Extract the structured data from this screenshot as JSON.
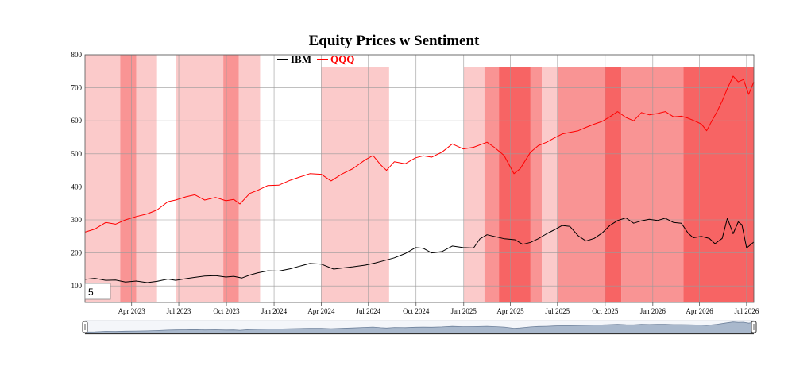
{
  "chart_data": {
    "type": "line",
    "title": "Equity Prices w Sentiment",
    "xlabel": "",
    "ylabel": "",
    "xlim": [
      "2023-01-01",
      "2026-07-15"
    ],
    "ylim": [
      50,
      800
    ],
    "grid": true,
    "legend_position": "top-center",
    "y_ticks": [
      100,
      200,
      300,
      400,
      500,
      600,
      700,
      800
    ],
    "x_ticks": [
      {
        "date": "2023-04-01",
        "label": "Apr 2023"
      },
      {
        "date": "2023-07-01",
        "label": "Jul 2023"
      },
      {
        "date": "2023-10-01",
        "label": "Oct 2023"
      },
      {
        "date": "2024-01-01",
        "label": "Jan 2024"
      },
      {
        "date": "2024-04-01",
        "label": "Apr 2024"
      },
      {
        "date": "2024-07-01",
        "label": "Jul 2024"
      },
      {
        "date": "2024-10-01",
        "label": "Oct 2024"
      },
      {
        "date": "2025-01-01",
        "label": "Jan 2025"
      },
      {
        "date": "2025-04-01",
        "label": "Apr 2025"
      },
      {
        "date": "2025-07-01",
        "label": "Jul 2025"
      },
      {
        "date": "2025-10-01",
        "label": "Oct 2025"
      },
      {
        "date": "2026-01-01",
        "label": "Jan 2026"
      },
      {
        "date": "2026-04-01",
        "label": "Apr 2026"
      },
      {
        "date": "2026-07-01",
        "label": "Jul 2026"
      }
    ],
    "series": [
      {
        "name": "IBM",
        "color": "#000000",
        "points": [
          [
            "2023-01-01",
            120
          ],
          [
            "2023-01-20",
            123
          ],
          [
            "2023-02-10",
            117
          ],
          [
            "2023-03-01",
            118
          ],
          [
            "2023-03-20",
            112
          ],
          [
            "2023-04-10",
            115
          ],
          [
            "2023-05-01",
            110
          ],
          [
            "2023-05-20",
            114
          ],
          [
            "2023-06-10",
            121
          ],
          [
            "2023-06-25",
            117
          ],
          [
            "2023-07-15",
            122
          ],
          [
            "2023-08-01",
            126
          ],
          [
            "2023-08-20",
            130
          ],
          [
            "2023-09-10",
            131
          ],
          [
            "2023-09-30",
            127
          ],
          [
            "2023-10-15",
            129
          ],
          [
            "2023-10-31",
            124
          ],
          [
            "2023-11-15",
            133
          ],
          [
            "2023-12-01",
            140
          ],
          [
            "2023-12-20",
            146
          ],
          [
            "2024-01-10",
            145
          ],
          [
            "2024-02-01",
            152
          ],
          [
            "2024-02-20",
            160
          ],
          [
            "2024-03-10",
            168
          ],
          [
            "2024-04-01",
            166
          ],
          [
            "2024-04-25",
            151
          ],
          [
            "2024-05-10",
            154
          ],
          [
            "2024-06-01",
            158
          ],
          [
            "2024-06-25",
            163
          ],
          [
            "2024-07-15",
            170
          ],
          [
            "2024-08-01",
            177
          ],
          [
            "2024-08-20",
            185
          ],
          [
            "2024-09-10",
            198
          ],
          [
            "2024-09-30",
            216
          ],
          [
            "2024-10-15",
            214
          ],
          [
            "2024-10-31",
            200
          ],
          [
            "2024-11-20",
            204
          ],
          [
            "2024-12-10",
            221
          ],
          [
            "2024-12-31",
            216
          ],
          [
            "2025-01-20",
            215
          ],
          [
            "2025-02-01",
            242
          ],
          [
            "2025-02-15",
            255
          ],
          [
            "2025-03-01",
            250
          ],
          [
            "2025-03-20",
            243
          ],
          [
            "2025-04-10",
            240
          ],
          [
            "2025-04-25",
            226
          ],
          [
            "2025-05-10",
            232
          ],
          [
            "2025-05-25",
            243
          ],
          [
            "2025-06-10",
            258
          ],
          [
            "2025-06-25",
            270
          ],
          [
            "2025-07-10",
            283
          ],
          [
            "2025-07-25",
            280
          ],
          [
            "2025-08-10",
            252
          ],
          [
            "2025-08-25",
            236
          ],
          [
            "2025-09-10",
            244
          ],
          [
            "2025-09-25",
            260
          ],
          [
            "2025-10-10",
            283
          ],
          [
            "2025-10-25",
            298
          ],
          [
            "2025-11-10",
            306
          ],
          [
            "2025-11-25",
            290
          ],
          [
            "2025-12-10",
            297
          ],
          [
            "2025-12-25",
            302
          ],
          [
            "2026-01-10",
            298
          ],
          [
            "2026-01-25",
            305
          ],
          [
            "2026-02-10",
            292
          ],
          [
            "2026-02-25",
            290
          ],
          [
            "2026-03-10",
            260
          ],
          [
            "2026-03-20",
            246
          ],
          [
            "2026-04-05",
            250
          ],
          [
            "2026-04-20",
            244
          ],
          [
            "2026-05-01",
            228
          ],
          [
            "2026-05-15",
            244
          ],
          [
            "2026-05-25",
            305
          ],
          [
            "2026-06-05",
            258
          ],
          [
            "2026-06-15",
            294
          ],
          [
            "2026-06-22",
            285
          ],
          [
            "2026-07-01",
            215
          ],
          [
            "2026-07-15",
            233
          ]
        ]
      },
      {
        "name": "QQQ",
        "color": "#ff0000",
        "points": [
          [
            "2023-01-01",
            263
          ],
          [
            "2023-01-20",
            272
          ],
          [
            "2023-02-10",
            292
          ],
          [
            "2023-03-01",
            287
          ],
          [
            "2023-03-20",
            300
          ],
          [
            "2023-04-10",
            310
          ],
          [
            "2023-05-01",
            318
          ],
          [
            "2023-05-20",
            330
          ],
          [
            "2023-06-10",
            355
          ],
          [
            "2023-06-25",
            360
          ],
          [
            "2023-07-15",
            370
          ],
          [
            "2023-08-01",
            376
          ],
          [
            "2023-08-20",
            360
          ],
          [
            "2023-09-10",
            368
          ],
          [
            "2023-09-30",
            358
          ],
          [
            "2023-10-15",
            362
          ],
          [
            "2023-10-27",
            348
          ],
          [
            "2023-11-15",
            380
          ],
          [
            "2023-12-01",
            390
          ],
          [
            "2023-12-20",
            404
          ],
          [
            "2024-01-10",
            405
          ],
          [
            "2024-02-01",
            420
          ],
          [
            "2024-02-20",
            430
          ],
          [
            "2024-03-10",
            440
          ],
          [
            "2024-04-01",
            438
          ],
          [
            "2024-04-20",
            418
          ],
          [
            "2024-05-10",
            438
          ],
          [
            "2024-06-01",
            455
          ],
          [
            "2024-06-25",
            482
          ],
          [
            "2024-07-10",
            495
          ],
          [
            "2024-07-25",
            466
          ],
          [
            "2024-08-05",
            450
          ],
          [
            "2024-08-20",
            476
          ],
          [
            "2024-09-10",
            470
          ],
          [
            "2024-09-30",
            488
          ],
          [
            "2024-10-15",
            494
          ],
          [
            "2024-10-31",
            490
          ],
          [
            "2024-11-20",
            505
          ],
          [
            "2024-12-10",
            530
          ],
          [
            "2024-12-31",
            515
          ],
          [
            "2025-01-20",
            520
          ],
          [
            "2025-02-15",
            535
          ],
          [
            "2025-03-01",
            520
          ],
          [
            "2025-03-20",
            495
          ],
          [
            "2025-04-08",
            440
          ],
          [
            "2025-04-20",
            455
          ],
          [
            "2025-05-10",
            505
          ],
          [
            "2025-05-25",
            525
          ],
          [
            "2025-06-10",
            535
          ],
          [
            "2025-06-25",
            548
          ],
          [
            "2025-07-10",
            560
          ],
          [
            "2025-07-25",
            565
          ],
          [
            "2025-08-10",
            570
          ],
          [
            "2025-08-25",
            580
          ],
          [
            "2025-09-10",
            590
          ],
          [
            "2025-09-25",
            598
          ],
          [
            "2025-10-10",
            612
          ],
          [
            "2025-10-25",
            628
          ],
          [
            "2025-11-10",
            610
          ],
          [
            "2025-11-25",
            600
          ],
          [
            "2025-12-10",
            625
          ],
          [
            "2025-12-25",
            618
          ],
          [
            "2026-01-10",
            622
          ],
          [
            "2026-01-25",
            628
          ],
          [
            "2026-02-10",
            612
          ],
          [
            "2026-02-25",
            614
          ],
          [
            "2026-03-10",
            608
          ],
          [
            "2026-03-25",
            598
          ],
          [
            "2026-04-05",
            590
          ],
          [
            "2026-04-15",
            570
          ],
          [
            "2026-04-25",
            600
          ],
          [
            "2026-05-05",
            628
          ],
          [
            "2026-05-15",
            660
          ],
          [
            "2026-05-25",
            698
          ],
          [
            "2026-06-05",
            735
          ],
          [
            "2026-06-15",
            718
          ],
          [
            "2026-06-25",
            725
          ],
          [
            "2026-07-05",
            680
          ],
          [
            "2026-07-15",
            718
          ]
        ]
      }
    ],
    "sentiment_bands": [
      {
        "start": "2023-01-01",
        "end": "2023-03-10",
        "level": 1
      },
      {
        "start": "2023-03-10",
        "end": "2023-04-10",
        "level": 2
      },
      {
        "start": "2023-04-10",
        "end": "2023-05-20",
        "level": 1
      },
      {
        "start": "2023-06-25",
        "end": "2023-09-25",
        "level": 1
      },
      {
        "start": "2023-09-25",
        "end": "2023-10-25",
        "level": 2
      },
      {
        "start": "2023-10-25",
        "end": "2023-12-05",
        "level": 1
      },
      {
        "start": "2024-04-01",
        "end": "2024-08-10",
        "level": 1
      },
      {
        "start": "2025-01-01",
        "end": "2025-02-10",
        "level": 1
      },
      {
        "start": "2025-02-10",
        "end": "2025-03-10",
        "level": 2
      },
      {
        "start": "2025-03-10",
        "end": "2025-05-10",
        "level": 3
      },
      {
        "start": "2025-05-10",
        "end": "2025-06-01",
        "level": 2
      },
      {
        "start": "2025-06-01",
        "end": "2025-07-01",
        "level": 1
      },
      {
        "start": "2025-07-01",
        "end": "2025-10-01",
        "level": 2
      },
      {
        "start": "2025-10-01",
        "end": "2025-11-01",
        "level": 3
      },
      {
        "start": "2025-11-01",
        "end": "2026-03-01",
        "level": 2
      },
      {
        "start": "2026-03-01",
        "end": "2026-07-15",
        "level": 3
      }
    ],
    "band_colors": {
      "1": "#fbcaca",
      "2": "#f99494",
      "3": "#f76464"
    }
  },
  "controls": {
    "rolling_window_value": "5"
  }
}
